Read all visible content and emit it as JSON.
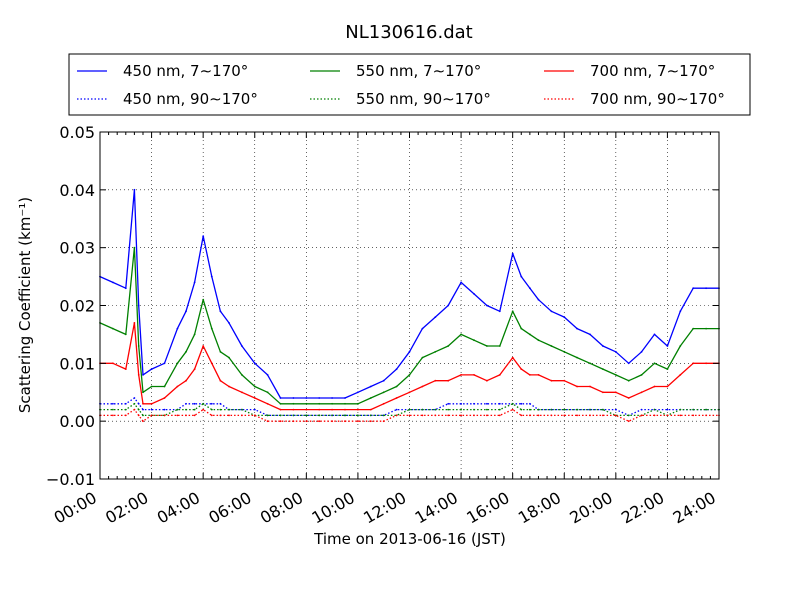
{
  "chart_data": {
    "type": "line",
    "title": "NL130616.dat",
    "xlabel": "Time on 2013-06-16 (JST)",
    "ylabel": "Scattering Coefficient (km⁻¹)",
    "xlim": [
      "00:00",
      "24:00"
    ],
    "ylim": [
      -0.01,
      0.05
    ],
    "x_ticks": [
      "00:00",
      "02:00",
      "04:00",
      "06:00",
      "08:00",
      "10:00",
      "12:00",
      "14:00",
      "16:00",
      "18:00",
      "20:00",
      "22:00",
      "24:00"
    ],
    "y_ticks": [
      "0.05",
      "0.04",
      "0.03",
      "0.02",
      "0.01",
      "0.00",
      "−0.01"
    ],
    "grid": true,
    "legend_placement": "top",
    "x": [
      "00:00",
      "00:30",
      "01:00",
      "01:20",
      "01:30",
      "01:40",
      "02:00",
      "02:30",
      "03:00",
      "03:20",
      "03:40",
      "04:00",
      "04:20",
      "04:40",
      "05:00",
      "05:30",
      "06:00",
      "06:30",
      "07:00",
      "07:30",
      "08:00",
      "08:30",
      "09:00",
      "09:30",
      "10:00",
      "10:30",
      "11:00",
      "11:30",
      "12:00",
      "12:30",
      "13:00",
      "13:30",
      "14:00",
      "14:30",
      "15:00",
      "15:30",
      "16:00",
      "16:20",
      "16:40",
      "17:00",
      "17:30",
      "18:00",
      "18:30",
      "19:00",
      "19:30",
      "20:00",
      "20:30",
      "21:00",
      "21:30",
      "22:00",
      "22:30",
      "23:00",
      "23:30",
      "24:00"
    ],
    "series": [
      {
        "name": "450 nm, 7∼170°",
        "color": "#0000ff",
        "style": "solid",
        "values": [
          0.025,
          0.024,
          0.023,
          0.04,
          0.02,
          0.008,
          0.009,
          0.01,
          0.016,
          0.019,
          0.024,
          0.032,
          0.025,
          0.019,
          0.017,
          0.013,
          0.01,
          0.008,
          0.004,
          0.004,
          0.004,
          0.004,
          0.004,
          0.004,
          0.005,
          0.006,
          0.007,
          0.009,
          0.012,
          0.016,
          0.018,
          0.02,
          0.024,
          0.022,
          0.02,
          0.019,
          0.029,
          0.025,
          0.023,
          0.021,
          0.019,
          0.018,
          0.016,
          0.015,
          0.013,
          0.012,
          0.01,
          0.012,
          0.015,
          0.013,
          0.019,
          0.023,
          0.023,
          0.023
        ]
      },
      {
        "name": "550 nm, 7∼170°",
        "color": "#008000",
        "style": "solid",
        "values": [
          0.017,
          0.016,
          0.015,
          0.03,
          0.013,
          0.005,
          0.006,
          0.006,
          0.01,
          0.012,
          0.015,
          0.021,
          0.016,
          0.012,
          0.011,
          0.008,
          0.006,
          0.005,
          0.003,
          0.003,
          0.003,
          0.003,
          0.003,
          0.003,
          0.003,
          0.004,
          0.005,
          0.006,
          0.008,
          0.011,
          0.012,
          0.013,
          0.015,
          0.014,
          0.013,
          0.013,
          0.019,
          0.016,
          0.015,
          0.014,
          0.013,
          0.012,
          0.011,
          0.01,
          0.009,
          0.008,
          0.007,
          0.008,
          0.01,
          0.009,
          0.013,
          0.016,
          0.016,
          0.016
        ]
      },
      {
        "name": "700 nm, 7∼170°",
        "color": "#ff0000",
        "style": "solid",
        "values": [
          0.01,
          0.01,
          0.009,
          0.017,
          0.008,
          0.003,
          0.003,
          0.004,
          0.006,
          0.007,
          0.009,
          0.013,
          0.01,
          0.007,
          0.006,
          0.005,
          0.004,
          0.003,
          0.002,
          0.002,
          0.002,
          0.002,
          0.002,
          0.002,
          0.002,
          0.002,
          0.003,
          0.004,
          0.005,
          0.006,
          0.007,
          0.007,
          0.008,
          0.008,
          0.007,
          0.008,
          0.011,
          0.009,
          0.008,
          0.008,
          0.007,
          0.007,
          0.006,
          0.006,
          0.005,
          0.005,
          0.004,
          0.005,
          0.006,
          0.006,
          0.008,
          0.01,
          0.01,
          0.01
        ]
      },
      {
        "name": "450 nm, 90∼170°",
        "color": "#0000ff",
        "style": "dotted",
        "values": [
          0.003,
          0.003,
          0.003,
          0.004,
          0.003,
          0.002,
          0.002,
          0.002,
          0.002,
          0.003,
          0.003,
          0.003,
          0.003,
          0.003,
          0.002,
          0.002,
          0.002,
          0.001,
          0.001,
          0.001,
          0.001,
          0.001,
          0.001,
          0.001,
          0.001,
          0.001,
          0.001,
          0.002,
          0.002,
          0.002,
          0.002,
          0.003,
          0.003,
          0.003,
          0.003,
          0.003,
          0.003,
          0.003,
          0.003,
          0.002,
          0.002,
          0.002,
          0.002,
          0.002,
          0.002,
          0.002,
          0.001,
          0.002,
          0.002,
          0.002,
          0.002,
          0.002,
          0.002,
          0.002
        ]
      },
      {
        "name": "550 nm, 90∼170°",
        "color": "#008000",
        "style": "dotted",
        "values": [
          0.002,
          0.002,
          0.002,
          0.003,
          0.002,
          0.001,
          0.001,
          0.001,
          0.002,
          0.002,
          0.002,
          0.003,
          0.002,
          0.002,
          0.002,
          0.002,
          0.001,
          0.001,
          0.001,
          0.001,
          0.001,
          0.001,
          0.001,
          0.001,
          0.001,
          0.001,
          0.001,
          0.001,
          0.002,
          0.002,
          0.002,
          0.002,
          0.002,
          0.002,
          0.002,
          0.002,
          0.003,
          0.002,
          0.002,
          0.002,
          0.002,
          0.002,
          0.002,
          0.002,
          0.002,
          0.001,
          0.001,
          0.001,
          0.002,
          0.001,
          0.002,
          0.002,
          0.002,
          0.002
        ]
      },
      {
        "name": "700 nm, 90∼170°",
        "color": "#ff0000",
        "style": "dotted",
        "values": [
          0.001,
          0.001,
          0.001,
          0.002,
          0.001,
          0.0,
          0.001,
          0.001,
          0.001,
          0.001,
          0.001,
          0.002,
          0.001,
          0.001,
          0.001,
          0.001,
          0.001,
          0.0,
          0.0,
          0.0,
          0.0,
          0.0,
          0.0,
          0.0,
          0.0,
          0.0,
          0.0,
          0.001,
          0.001,
          0.001,
          0.001,
          0.001,
          0.001,
          0.001,
          0.001,
          0.001,
          0.002,
          0.001,
          0.001,
          0.001,
          0.001,
          0.001,
          0.001,
          0.001,
          0.001,
          0.001,
          0.0,
          0.001,
          0.001,
          0.001,
          0.001,
          0.001,
          0.001,
          0.001
        ]
      }
    ]
  }
}
